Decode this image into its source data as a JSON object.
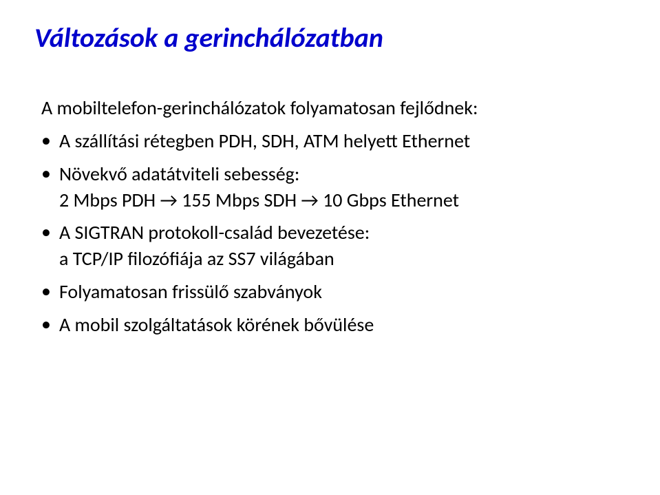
{
  "title": "Változások a gerinchálózatban",
  "intro": "A mobiltelefon-gerinchálózatok folyamatosan fejlődnek:",
  "bullets": [
    {
      "line1": "A szállítási rétegben PDH, SDH, ATM helyett Ethernet",
      "line2": null
    },
    {
      "line1": "Növekvő adatátviteli sebesség:",
      "line2": "2 Mbps PDH → 155 Mbps SDH → 10 Gbps Ethernet"
    },
    {
      "line1": "A SIGTRAN protokoll-család bevezetése:",
      "line2": "a TCP/IP filozófiája az SS7 világában"
    },
    {
      "line1": "Folyamatosan frissülő szabványok",
      "line2": null
    },
    {
      "line1": "A mobil szolgáltatások körének bővülése",
      "line2": null
    }
  ],
  "colors": {
    "title": "#0000cc",
    "text": "#000000",
    "background": "#ffffff"
  },
  "fonts": {
    "title_size": 40,
    "body_size": 28
  }
}
